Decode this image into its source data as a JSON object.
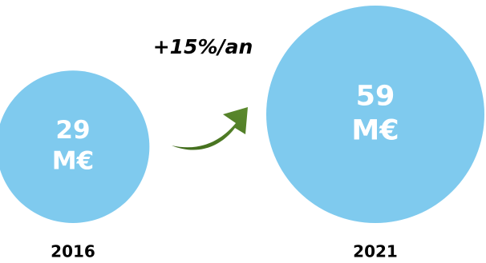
{
  "chart_data": {
    "type": "bubble",
    "annotation": "+15%/an",
    "colors": {
      "bubble": "#7fcaee",
      "arrow": "#5c8a2e",
      "arrow_dark": "#3f6a1a"
    },
    "series": [
      {
        "x": "2016",
        "value": 29,
        "value_text": "29",
        "unit_text": "M€"
      },
      {
        "x": "2021",
        "value": 59,
        "value_text": "59",
        "unit_text": "M€"
      }
    ]
  }
}
